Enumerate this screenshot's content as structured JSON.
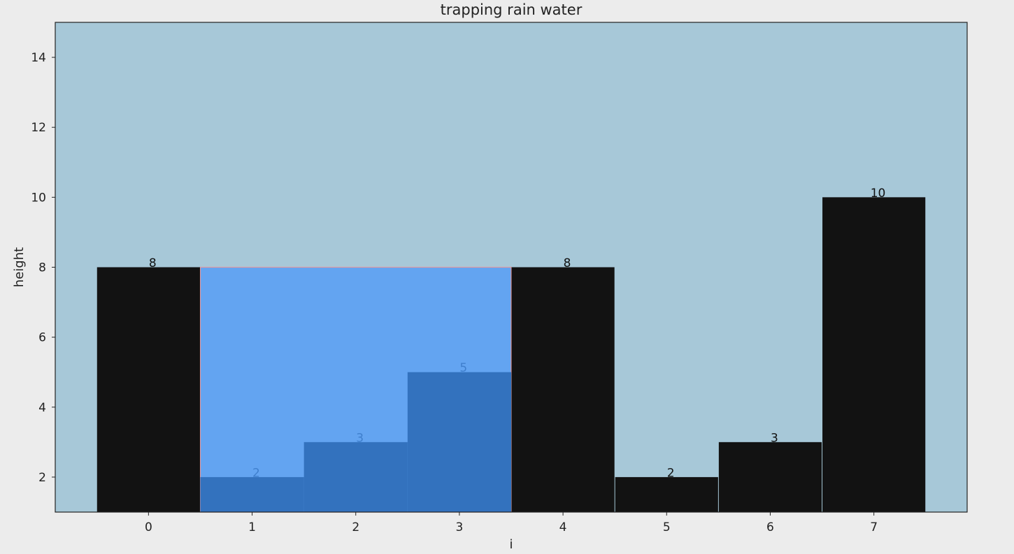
{
  "chart_data": {
    "type": "bar",
    "title": "trapping rain water",
    "xlabel": "i",
    "ylabel": "height",
    "categories": [
      "0",
      "1",
      "2",
      "3",
      "4",
      "5",
      "6",
      "7"
    ],
    "values": [
      8,
      2,
      3,
      5,
      8,
      2,
      3,
      10
    ],
    "xlim": [
      -0.9,
      7.9
    ],
    "ylim": [
      1,
      15
    ],
    "y_ticks": [
      2,
      4,
      6,
      8,
      10,
      12,
      14
    ],
    "highlight": {
      "range": [
        1,
        3
      ],
      "water_level": 8,
      "bottom": 1,
      "fill_color": "#63a4f1",
      "edge_color": "#e39aa0",
      "bar_color": "#3372be",
      "label_color": "#3f7fcd"
    },
    "colors": {
      "plot_background": "#a7c8d8",
      "figure_background": "#ececec",
      "bar": "#121212",
      "bar_label": "#111111"
    },
    "grid": false,
    "legend": "none"
  }
}
